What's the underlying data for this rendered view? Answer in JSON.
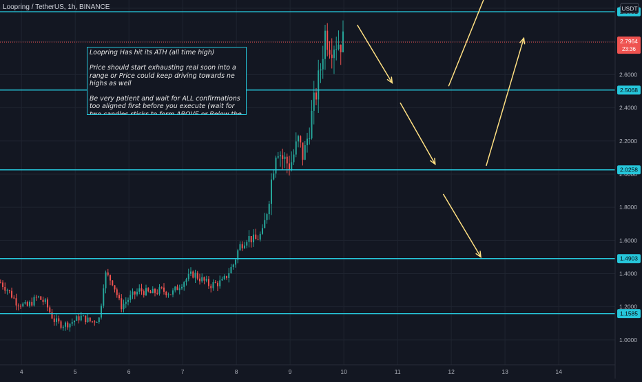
{
  "header": {
    "title": "Loopring / TetherUS, 1h, BINANCE",
    "currency": "USDT"
  },
  "annotation": {
    "text": "Loopring Has hit its ATH (all time high)\n\nPrice should start exhausting real soon into a range or Price could keep driving towards ne highs as well\n\nBe very patient and wait for ALL confirmations too aligned first before you execute (wait for two candles sticks to form ABOVE or Below the support line and or resistance line)"
  },
  "price_badge": {
    "value": "2.7964",
    "countdown": "23:36",
    "color": "#ef5350"
  },
  "colors": {
    "background": "#131722",
    "level_line": "#26c6da",
    "up": "#26a69a",
    "down": "#ef5350",
    "arrow": "#ffe082"
  },
  "chart_data": {
    "type": "candlestick",
    "title": "Loopring / TetherUS, 1h, BINANCE",
    "ylim": [
      0.85,
      3.05
    ],
    "xlim": [
      3.6,
      15.05
    ],
    "x_ticks": [
      "4",
      "5",
      "6",
      "7",
      "8",
      "9",
      "10",
      "11",
      "12",
      "13",
      "14"
    ],
    "y_ticks": [
      "1.0000",
      "1.2000",
      "1.4000",
      "1.6000",
      "1.8000",
      "2.0000",
      "2.2000",
      "2.4000",
      "2.6000",
      "2.8000",
      "3.0000"
    ],
    "horizontal_levels": [
      2.9791,
      2.5068,
      2.0258,
      1.4903,
      1.1585
    ],
    "level_labels": [
      "2.9791",
      "2.5068",
      "2.0258",
      "1.4903",
      "1.1585"
    ],
    "current_price": 2.7964,
    "price_anchors": [
      [
        3.6,
        1.35
      ],
      [
        3.75,
        1.3
      ],
      [
        3.9,
        1.23
      ],
      [
        4.1,
        1.2
      ],
      [
        4.3,
        1.26
      ],
      [
        4.45,
        1.22
      ],
      [
        4.6,
        1.12
      ],
      [
        4.75,
        1.09
      ],
      [
        4.9,
        1.1
      ],
      [
        5.1,
        1.14
      ],
      [
        5.3,
        1.11
      ],
      [
        5.45,
        1.13
      ],
      [
        5.55,
        1.4
      ],
      [
        5.7,
        1.35
      ],
      [
        5.85,
        1.2
      ],
      [
        6.0,
        1.25
      ],
      [
        6.2,
        1.3
      ],
      [
        6.4,
        1.28
      ],
      [
        6.6,
        1.3
      ],
      [
        6.8,
        1.28
      ],
      [
        7.0,
        1.35
      ],
      [
        7.2,
        1.4
      ],
      [
        7.5,
        1.33
      ],
      [
        7.75,
        1.35
      ],
      [
        7.95,
        1.46
      ],
      [
        8.05,
        1.56
      ],
      [
        8.2,
        1.62
      ],
      [
        8.35,
        1.6
      ],
      [
        8.5,
        1.65
      ],
      [
        8.6,
        1.85
      ],
      [
        8.75,
        2.18
      ],
      [
        8.85,
        2.1
      ],
      [
        9.0,
        2.05
      ],
      [
        9.15,
        2.2
      ],
      [
        9.25,
        2.1
      ],
      [
        9.4,
        2.35
      ],
      [
        9.55,
        2.6
      ],
      [
        9.65,
        2.85
      ],
      [
        9.75,
        2.78
      ],
      [
        9.85,
        2.8
      ],
      [
        10.0,
        2.7964
      ]
    ],
    "arrows": [
      [
        [
          10.25,
          2.9
        ],
        [
          10.9,
          2.55
        ]
      ],
      [
        [
          11.05,
          2.43
        ],
        [
          11.7,
          2.06
        ]
      ],
      [
        [
          11.95,
          2.53
        ],
        [
          12.65,
          3.09
        ]
      ],
      [
        [
          11.85,
          1.88
        ],
        [
          12.55,
          1.5
        ]
      ],
      [
        [
          12.65,
          2.05
        ],
        [
          13.35,
          2.82
        ]
      ]
    ]
  }
}
